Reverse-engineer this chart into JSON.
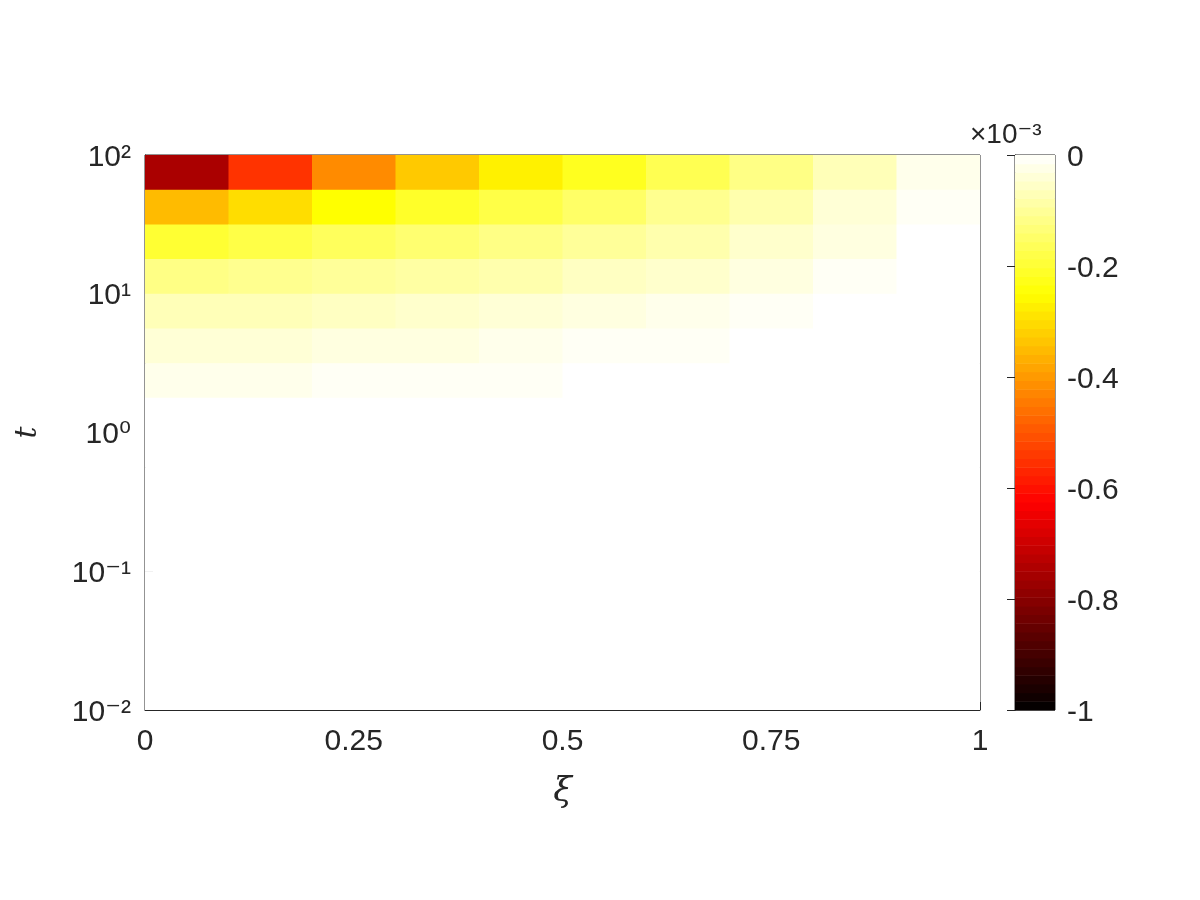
{
  "chart_data": {
    "type": "heatmap",
    "xlabel": "ξ",
    "ylabel": "t",
    "clabel": "×10⁻³",
    "cells": [
      [
        -0.75,
        -0.55,
        -0.42,
        -0.33,
        -0.27,
        -0.22,
        -0.17,
        -0.12,
        -0.07,
        -0.02
      ],
      [
        -0.35,
        -0.3,
        -0.25,
        -0.21,
        -0.18,
        -0.15,
        -0.11,
        -0.08,
        -0.04,
        -0.01
      ],
      [
        -0.2,
        -0.18,
        -0.16,
        -0.14,
        -0.12,
        -0.1,
        -0.08,
        -0.05,
        -0.03,
        0
      ],
      [
        -0.12,
        -0.11,
        -0.1,
        -0.09,
        -0.08,
        -0.06,
        -0.05,
        -0.03,
        -0.01,
        0
      ],
      [
        -0.07,
        -0.07,
        -0.06,
        -0.05,
        -0.04,
        -0.03,
        -0.02,
        -0.01,
        0,
        0
      ],
      [
        -0.04,
        -0.04,
        -0.03,
        -0.03,
        -0.02,
        -0.01,
        -0.01,
        0,
        0,
        0
      ],
      [
        -0.02,
        -0.02,
        -0.01,
        -0.01,
        -0.01,
        0,
        0,
        0,
        0,
        0
      ],
      [
        0,
        0,
        0,
        0,
        0,
        0,
        0,
        0,
        0,
        0
      ],
      [
        0,
        0,
        0,
        0,
        0,
        0,
        0,
        0,
        0,
        0
      ],
      [
        0,
        0,
        0,
        0,
        0,
        0,
        0,
        0,
        0,
        0
      ],
      [
        0,
        0,
        0,
        0,
        0,
        0,
        0,
        0,
        0,
        0
      ],
      [
        0,
        0,
        0,
        0,
        0,
        0,
        0,
        0,
        0,
        0
      ],
      [
        0,
        0,
        0,
        0,
        0,
        0,
        0,
        0,
        0,
        0
      ],
      [
        0,
        0,
        0,
        0,
        0,
        0,
        0,
        0,
        0,
        0
      ],
      [
        0,
        0,
        0,
        0,
        0,
        0,
        0,
        0,
        0,
        0
      ],
      [
        0,
        0,
        0,
        0,
        0,
        0,
        0,
        0,
        0,
        0
      ]
    ],
    "xlim": [
      0,
      1
    ],
    "xticks": [
      0,
      0.25,
      0.5,
      0.75,
      1
    ],
    "ylim": [
      0.01,
      100
    ],
    "yticks": [
      {
        "value": 0.01,
        "label": "10⁻²"
      },
      {
        "value": 0.1,
        "label": "10⁻¹"
      },
      {
        "value": 1,
        "label": "10⁰"
      },
      {
        "value": 10,
        "label": "10¹"
      },
      {
        "value": 100,
        "label": "10²"
      }
    ],
    "log": "y",
    "clim": [
      -1,
      0
    ],
    "cticks": [
      -1,
      -0.8,
      -0.6,
      -0.4,
      -0.2,
      0
    ]
  }
}
